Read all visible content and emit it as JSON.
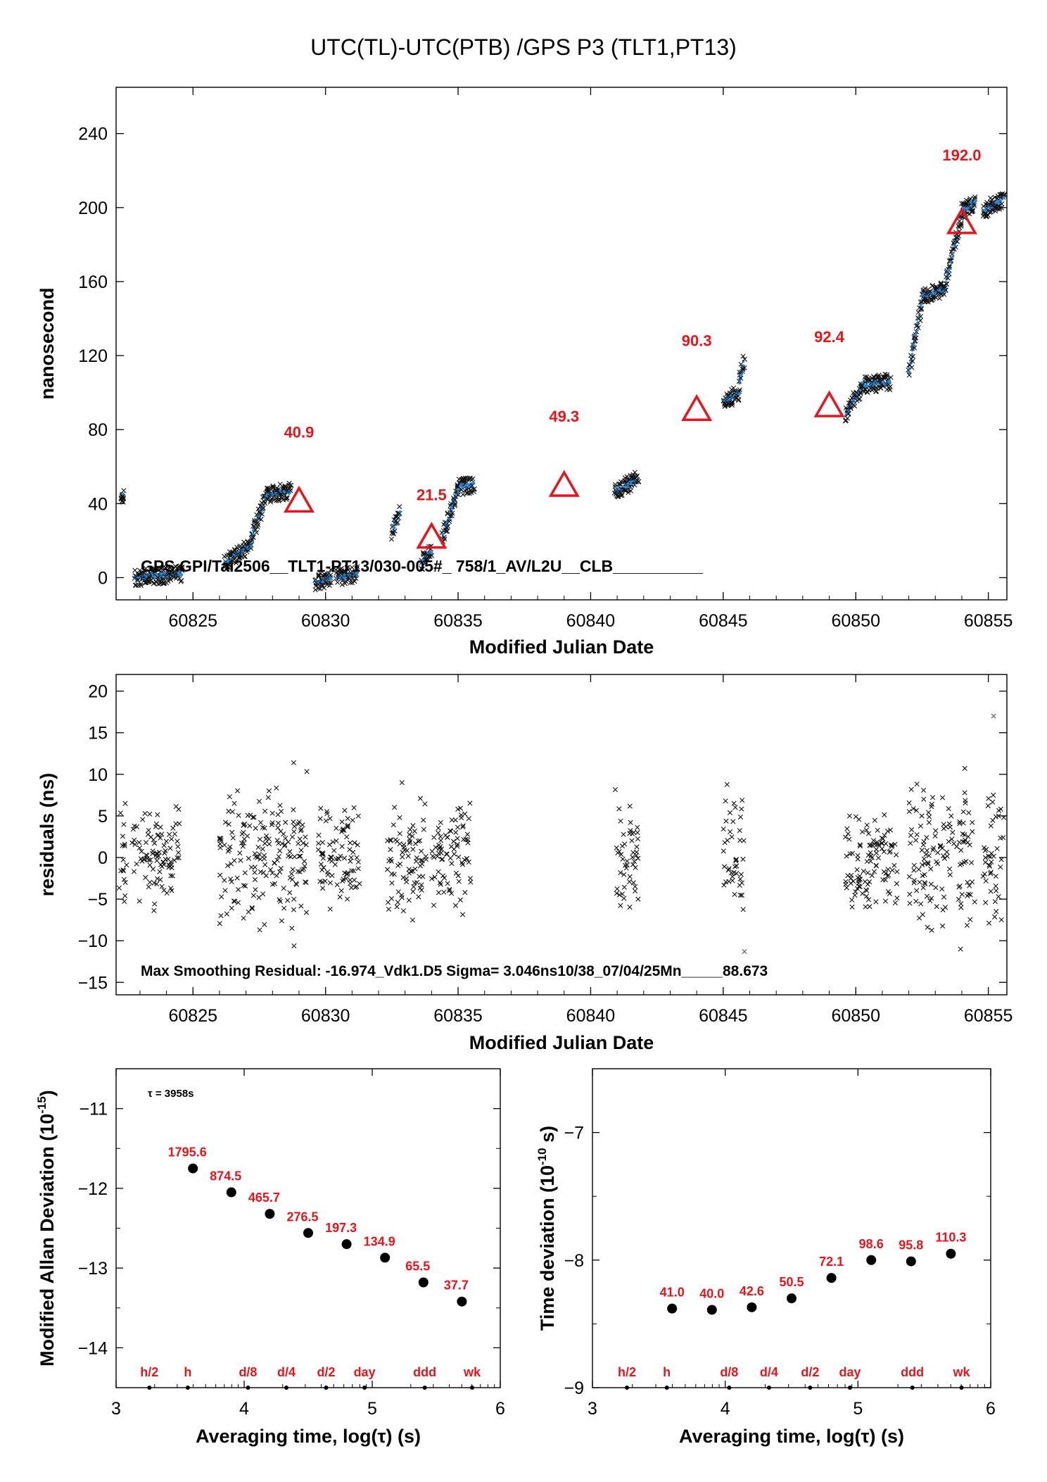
{
  "title": "UTC(TL)-UTC(PTB)  /GPS  P3  (TLT1,PT13)",
  "colors": {
    "black": "#000000",
    "red": "#e8141b",
    "blue": "#2b86d6",
    "gray": "#555555"
  },
  "chart_data": [
    {
      "id": "main",
      "type": "scatter",
      "xlabel": "Modified Julian Date",
      "ylabel": "nanosecond",
      "xlim": [
        60822.1,
        60855.7
      ],
      "ylim": [
        -12,
        265
      ],
      "xticks": [
        "60825",
        "60830",
        "60835",
        "60840",
        "60845",
        "60850",
        "60855"
      ],
      "yticks": [
        "0",
        "40",
        "80",
        "120",
        "160",
        "200",
        "240"
      ],
      "annotation": "GPS.GPI/Tai2506__TLT1-PT13/030-005#_  758/1_AV/L2U__CLB__________",
      "markers": [
        {
          "x": 60829.0,
          "y": 41.5,
          "label": "40.9"
        },
        {
          "x": 60834.0,
          "y": 22.0,
          "label": "21.5"
        },
        {
          "x": 60839.0,
          "y": 50.0,
          "label": "49.3"
        },
        {
          "x": 60844.0,
          "y": 91.0,
          "label": "90.3"
        },
        {
          "x": 60849.0,
          "y": 93.0,
          "label": "92.4"
        },
        {
          "x": 60854.0,
          "y": 192.0,
          "label": "192.0"
        }
      ],
      "segments": [
        [
          60822.3,
          60822.4,
          45,
          45
        ],
        [
          60822.8,
          60824.6,
          0,
          2
        ],
        [
          60826.2,
          60827.2,
          8,
          18
        ],
        [
          60827.2,
          60827.8,
          22,
          45
        ],
        [
          60827.8,
          60828.7,
          45,
          47
        ],
        [
          60829.6,
          60830.2,
          -3,
          0
        ],
        [
          60830.4,
          60831.2,
          0,
          2
        ],
        [
          60832.5,
          60832.8,
          25,
          35
        ],
        [
          60833.6,
          60834.0,
          8,
          14
        ],
        [
          60834.4,
          60835.0,
          22,
          47
        ],
        [
          60835.0,
          60835.6,
          49,
          50
        ],
        [
          60840.9,
          60841.8,
          46,
          54
        ],
        [
          60845.0,
          60845.6,
          95,
          100
        ],
        [
          60845.6,
          60845.8,
          105,
          118
        ],
        [
          60849.6,
          60850.2,
          88,
          102
        ],
        [
          60850.2,
          60851.3,
          104,
          106
        ],
        [
          60852.0,
          60852.5,
          110,
          150
        ],
        [
          60852.5,
          60853.4,
          152,
          156
        ],
        [
          60853.4,
          60854.0,
          160,
          195
        ],
        [
          60854.0,
          60854.5,
          198,
          203
        ],
        [
          60854.8,
          60855.6,
          198,
          205
        ]
      ]
    },
    {
      "id": "residuals",
      "type": "scatter",
      "xlabel": "Modified Julian Date",
      "ylabel": "residuals (ns)",
      "xlim": [
        60822.1,
        60855.7
      ],
      "ylim": [
        -16.5,
        22
      ],
      "xticks": [
        "60825",
        "60830",
        "60835",
        "60840",
        "60845",
        "60850",
        "60855"
      ],
      "yticks": [
        "-15",
        "-10",
        "-5",
        "0",
        "5",
        "10",
        "15",
        "20"
      ],
      "annotation": "Max Smoothing Residual: -16.974_Vdk1.D5  Sigma= 3.046ns10/38_07/04/25Mn_____88.673",
      "clusters": [
        [
          60822.2,
          60822.5,
          4.5
        ],
        [
          60822.7,
          60824.5,
          2.5
        ],
        [
          60826.0,
          60829.3,
          4.0
        ],
        [
          60829.7,
          60831.3,
          3.0
        ],
        [
          60832.3,
          60833.8,
          3.5
        ],
        [
          60834.0,
          60835.5,
          3.0
        ],
        [
          60840.9,
          60841.8,
          3.5
        ],
        [
          60845.0,
          60845.8,
          3.5
        ],
        [
          60849.6,
          60851.6,
          3.0
        ],
        [
          60852.0,
          60854.5,
          4.0
        ],
        [
          60854.8,
          60855.6,
          4.0
        ]
      ],
      "outliers": [
        {
          "x": 60855.2,
          "y": 17.0
        },
        {
          "x": 60845.8,
          "y": -11.3
        }
      ]
    },
    {
      "id": "mdev",
      "type": "scatter",
      "xlabel": "Averaging time, log(τ) (s)",
      "ylabel": "Modified Allan Deviation (10",
      "ylabel_exp": "-15",
      "ylabel_tail": ")",
      "xlim": [
        3,
        6
      ],
      "ylim": [
        -14.5,
        -10.5
      ],
      "xticks": [
        "3",
        "4",
        "5",
        "6"
      ],
      "yticks": [
        "-14",
        "-13",
        "-12",
        "-11"
      ],
      "tau_note": "τ = 3958s",
      "points": [
        {
          "x": 3.6,
          "y": -11.75,
          "label": "1795.6"
        },
        {
          "x": 3.9,
          "y": -12.05,
          "label": "874.5"
        },
        {
          "x": 4.2,
          "y": -12.32,
          "label": "465.7"
        },
        {
          "x": 4.5,
          "y": -12.56,
          "label": "276.5"
        },
        {
          "x": 4.8,
          "y": -12.7,
          "label": "197.3"
        },
        {
          "x": 5.1,
          "y": -12.87,
          "label": "134.9"
        },
        {
          "x": 5.4,
          "y": -13.18,
          "label": "65.5"
        },
        {
          "x": 5.7,
          "y": -13.42,
          "label": "37.7"
        }
      ],
      "tau_marks": [
        {
          "x": 3.26,
          "label": "h/2"
        },
        {
          "x": 3.56,
          "label": "h"
        },
        {
          "x": 4.03,
          "label": "d/8"
        },
        {
          "x": 4.33,
          "label": "d/4"
        },
        {
          "x": 4.64,
          "label": "d/2"
        },
        {
          "x": 4.94,
          "label": "day"
        },
        {
          "x": 5.41,
          "label": "ddd"
        },
        {
          "x": 5.78,
          "label": "wk"
        }
      ]
    },
    {
      "id": "tdev",
      "type": "scatter",
      "xlabel": "Averaging time, log(τ) (s)",
      "ylabel": "Time deviation (10",
      "ylabel_exp": "-10",
      "ylabel_tail": " s)",
      "xlim": [
        3,
        6
      ],
      "ylim": [
        -9,
        -6.5
      ],
      "xticks": [
        "3",
        "4",
        "5",
        "6"
      ],
      "yticks": [
        "-9",
        "-8",
        "-7"
      ],
      "points": [
        {
          "x": 3.6,
          "y": -8.38,
          "label": "41.0"
        },
        {
          "x": 3.9,
          "y": -8.39,
          "label": "40.0"
        },
        {
          "x": 4.2,
          "y": -8.37,
          "label": "42.6"
        },
        {
          "x": 4.5,
          "y": -8.3,
          "label": "50.5"
        },
        {
          "x": 4.8,
          "y": -8.14,
          "label": "72.1"
        },
        {
          "x": 5.1,
          "y": -8.0,
          "label": "98.6"
        },
        {
          "x": 5.4,
          "y": -8.01,
          "label": "95.8"
        },
        {
          "x": 5.7,
          "y": -7.95,
          "label": "110.3"
        }
      ],
      "tau_marks": [
        {
          "x": 3.26,
          "label": "h/2"
        },
        {
          "x": 3.56,
          "label": "h"
        },
        {
          "x": 4.03,
          "label": "d/8"
        },
        {
          "x": 4.33,
          "label": "d/4"
        },
        {
          "x": 4.64,
          "label": "d/2"
        },
        {
          "x": 4.94,
          "label": "day"
        },
        {
          "x": 5.41,
          "label": "ddd"
        },
        {
          "x": 5.78,
          "label": "wk"
        }
      ]
    }
  ]
}
